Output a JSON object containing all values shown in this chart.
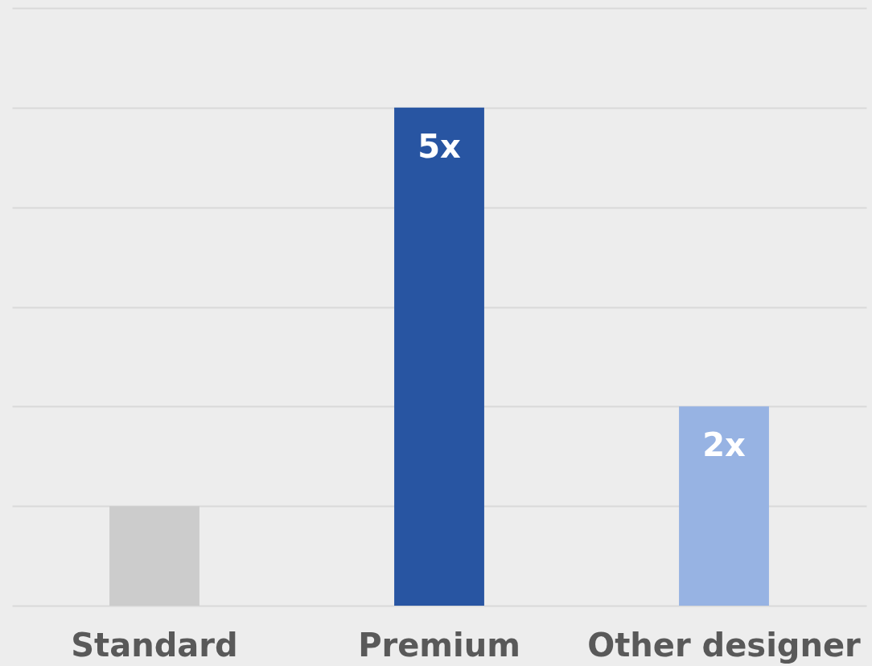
{
  "chart_data": {
    "type": "bar",
    "categories": [
      "Standard",
      "Premium",
      "Other designer"
    ],
    "values": [
      1,
      5,
      2
    ],
    "colors": [
      "#cccccc",
      "#2855a2",
      "#97b3e3"
    ],
    "value_labels": [
      null,
      "5x",
      "2x"
    ],
    "ylim": [
      0,
      6
    ],
    "yticks": [
      {
        "value": 0,
        "label": null
      },
      {
        "value": 1,
        "label": null
      },
      {
        "value": 2,
        "label": null
      },
      {
        "value": 3,
        "label": null
      },
      {
        "value": 4,
        "label": null
      },
      {
        "value": 5,
        "label": null
      },
      {
        "value": 6,
        "label": null
      }
    ],
    "grid": "y",
    "tick_labels": "x"
  }
}
